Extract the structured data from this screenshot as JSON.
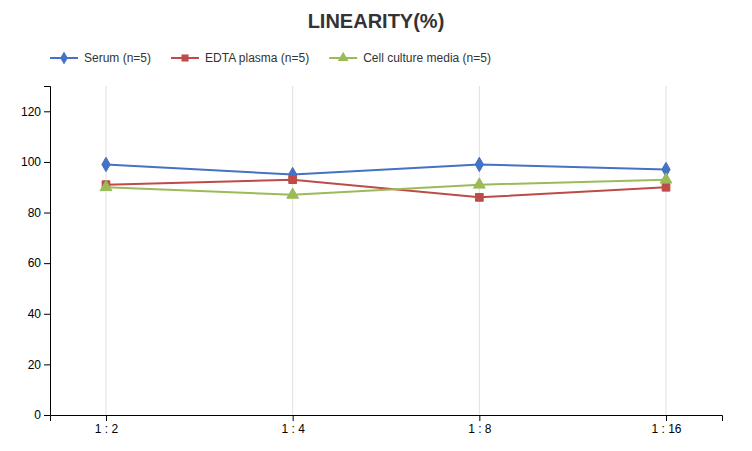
{
  "chart_data": {
    "type": "line",
    "title": "LINEARITY(%)",
    "categories": [
      "1 : 2",
      "1 : 4",
      "1 : 8",
      "1 : 16"
    ],
    "series": [
      {
        "name": "Serum (n=5)",
        "color": "#4472C4",
        "marker": "diamond",
        "values": [
          99,
          95,
          99,
          97
        ]
      },
      {
        "name": "EDTA plasma (n=5)",
        "color": "#BE4B48",
        "marker": "square",
        "values": [
          91,
          93,
          86,
          90
        ]
      },
      {
        "name": "Cell culture media (n=5)",
        "color": "#9BBB59",
        "marker": "triangle",
        "values": [
          90,
          87,
          91,
          93
        ]
      }
    ],
    "ylim": [
      0,
      130
    ],
    "yticks": [
      0,
      20,
      40,
      60,
      80,
      100,
      120
    ],
    "grid": "x",
    "legend": "top-left"
  }
}
